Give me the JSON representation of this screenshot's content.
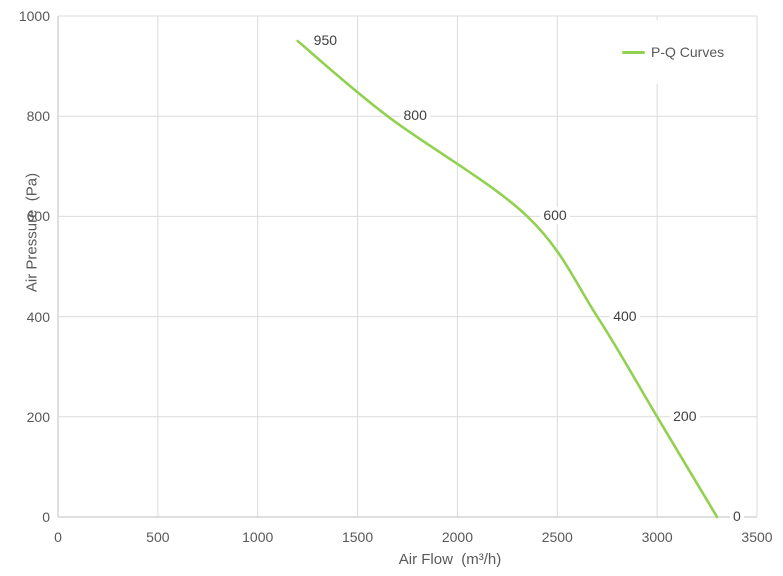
{
  "chart_data": {
    "type": "line",
    "xlabel": "Air Flow  (m³/h)",
    "ylabel": "Air Pressure  (Pa)",
    "xlim": [
      0,
      3500
    ],
    "ylim": [
      0,
      1000
    ],
    "xticks": [
      0,
      500,
      1000,
      1500,
      2000,
      2500,
      3000,
      3500
    ],
    "yticks": [
      0,
      200,
      400,
      600,
      800,
      1000
    ],
    "grid": true,
    "legend_position": "top-right-inside",
    "series": [
      {
        "name": "P-Q Curves",
        "color": "#92D050",
        "smooth": true,
        "points": [
          {
            "x": 1200,
            "y": 950,
            "label": "950"
          },
          {
            "x": 1650,
            "y": 800,
            "label": "800"
          },
          {
            "x": 2350,
            "y": 600,
            "label": "600"
          },
          {
            "x": 2700,
            "y": 400,
            "label": "400"
          },
          {
            "x": 3000,
            "y": 200,
            "label": "200"
          },
          {
            "x": 3300,
            "y": 0,
            "label": "0"
          }
        ]
      }
    ],
    "colors": {
      "background": "#FFFFFF",
      "gridline": "#DBDBDB",
      "axis_line": "#BFBFBF",
      "tick_text": "#595959",
      "data_label_text": "#404040",
      "legend_text": "#595959"
    }
  }
}
